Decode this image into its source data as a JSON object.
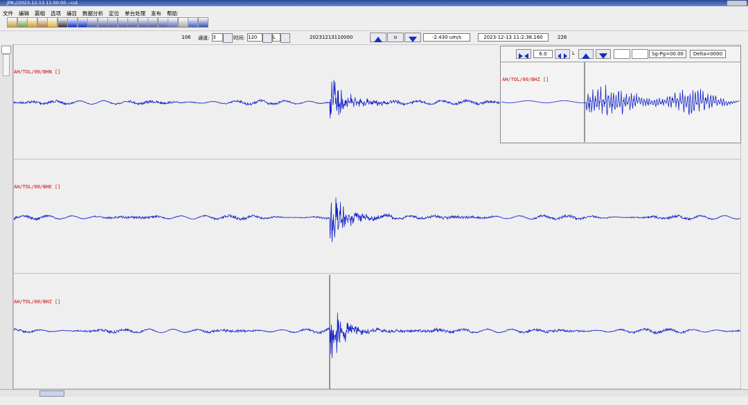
{
  "window": {
    "title": "JPA://2023-12-13 11:00:00 --cut"
  },
  "menu": [
    "文件",
    "编辑",
    "震相",
    "选项",
    "编目",
    "数据分析",
    "定位",
    "单台处理",
    "发布",
    "帮助"
  ],
  "toolbar": {
    "count": "106",
    "channel_label": "通道:",
    "channel": "3",
    "time_label": "时间:",
    "time": "120",
    "mode": "L",
    "start": "20231213110000",
    "center_button": "o",
    "amplitude": "-2.430 um/s",
    "cursor_time": "2023-12-13 11:2:38.160",
    "sample": "226"
  },
  "traces": [
    {
      "label": "AH/TOL/00/BHN []"
    },
    {
      "label": "AH/TOL/00/BHE []"
    },
    {
      "label": "AH/TOL/00/BHZ []"
    }
  ],
  "inset": {
    "zoom": "6.0",
    "mode": "L",
    "sg_pg": "Sg-Pg=00.00",
    "delta": "Delta=0000",
    "label": "AH/TOL/00/BHZ []"
  }
}
